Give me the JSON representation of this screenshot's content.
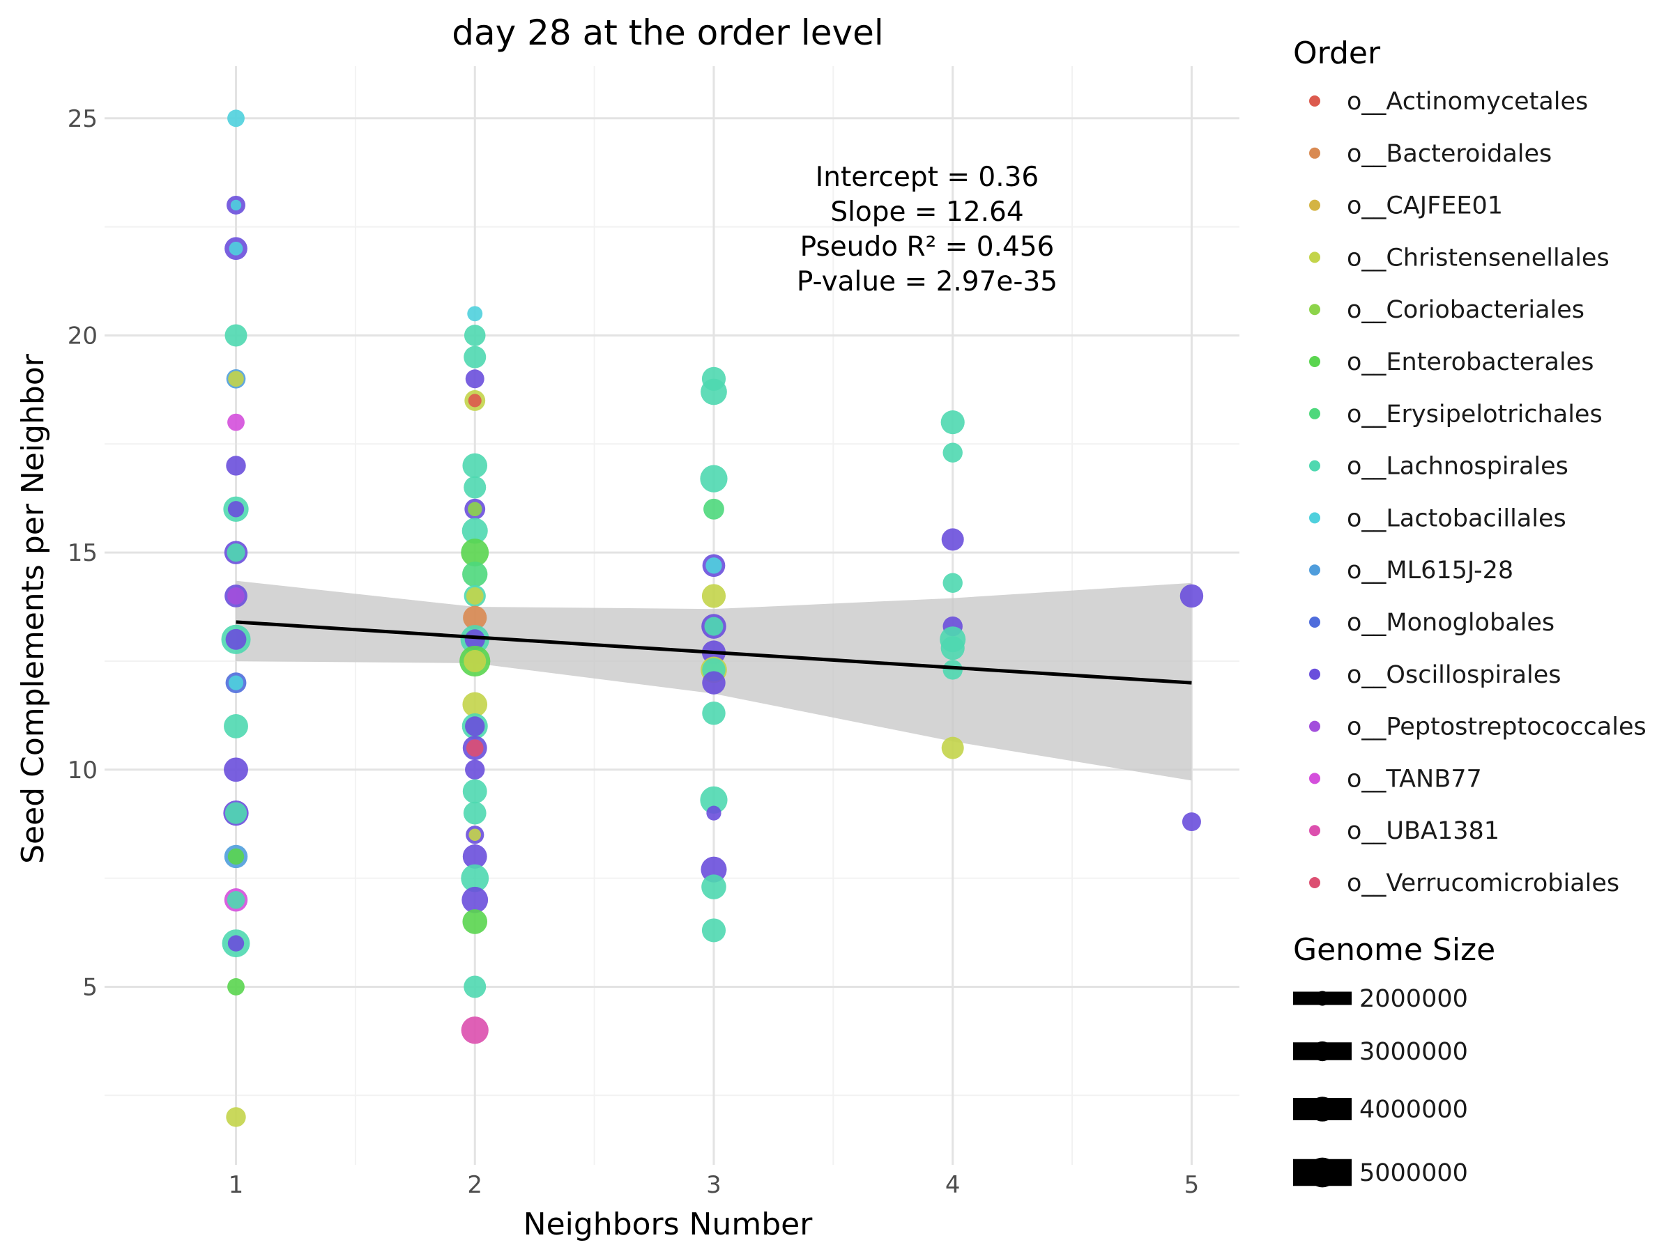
{
  "chart_data": {
    "type": "scatter",
    "title": "day 28 at the order level",
    "xlabel": "Neighbors Number",
    "ylabel": "Seed Complements per Neighbor",
    "xlim": [
      0.45,
      5.2
    ],
    "ylim": [
      0.9,
      26.2
    ],
    "xticks": [
      1,
      2,
      3,
      4,
      5
    ],
    "yticks": [
      5,
      10,
      15,
      20,
      25
    ],
    "grid": true,
    "annotations": [
      "Intercept = 0.36",
      "Slope = 12.64",
      "Pseudo R² = 0.456",
      "P-value = 2.97e-35"
    ],
    "trend_line": {
      "x": [
        1,
        5
      ],
      "y": [
        13.4,
        12.0
      ]
    },
    "confidence_band": {
      "x": [
        1,
        2,
        3,
        4,
        5
      ],
      "upper": [
        14.35,
        13.75,
        13.7,
        13.95,
        14.3
      ],
      "lower": [
        12.5,
        12.45,
        11.75,
        10.65,
        9.75
      ]
    },
    "color_legend": {
      "title": "Order",
      "items": [
        {
          "label": "o__Actinomycetales",
          "color": "#dc5a4e"
        },
        {
          "label": "o__Bacteroidales",
          "color": "#d98a52"
        },
        {
          "label": "o__CAJFEE01",
          "color": "#d4b443"
        },
        {
          "label": "o__Christensenellales",
          "color": "#c3d44a"
        },
        {
          "label": "o__Coriobacteriales",
          "color": "#8dd44a"
        },
        {
          "label": "o__Enterobacterales",
          "color": "#5ad54f"
        },
        {
          "label": "o__Erysipelotrichales",
          "color": "#4ed87c"
        },
        {
          "label": "o__Lachnospirales",
          "color": "#4fd8b0"
        },
        {
          "label": "o__Lactobacillales",
          "color": "#4fd0dd"
        },
        {
          "label": "o__ML615J-28",
          "color": "#4f9ddc"
        },
        {
          "label": "o__Monoglobales",
          "color": "#4f6ddc"
        },
        {
          "label": "o__Oscillospirales",
          "color": "#6a4fdc"
        },
        {
          "label": "o__Peptostreptococcales",
          "color": "#a24fdc"
        },
        {
          "label": "o__TANB77",
          "color": "#d44fdc"
        },
        {
          "label": "o__UBA1381",
          "color": "#dc4fae"
        },
        {
          "label": "o__Verrucomicrobiales",
          "color": "#dc4f72"
        }
      ]
    },
    "size_legend": {
      "title": "Genome Size",
      "items": [
        {
          "label": "2000000",
          "value": 2000000
        },
        {
          "label": "3000000",
          "value": 3000000
        },
        {
          "label": "4000000",
          "value": 4000000
        },
        {
          "label": "5000000",
          "value": 5000000
        }
      ]
    },
    "points": [
      {
        "x": 1,
        "y": 25,
        "order": "o__Lactobacillales",
        "size": 2500000
      },
      {
        "x": 1,
        "y": 23,
        "order": "o__Oscillospirales",
        "size": 2800000
      },
      {
        "x": 1,
        "y": 23,
        "order": "o__Lactobacillales",
        "size": 1200000
      },
      {
        "x": 1,
        "y": 22,
        "order": "o__Oscillospirales",
        "size": 3600000
      },
      {
        "x": 1,
        "y": 22,
        "order": "o__Lactobacillales",
        "size": 1800000
      },
      {
        "x": 1,
        "y": 20,
        "order": "o__Lachnospirales",
        "size": 3500000
      },
      {
        "x": 1,
        "y": 19,
        "order": "o__ML615J-28",
        "size": 2900000
      },
      {
        "x": 1,
        "y": 19,
        "order": "o__Christensenellales",
        "size": 2200000
      },
      {
        "x": 1,
        "y": 18,
        "order": "o__TANB77",
        "size": 2500000
      },
      {
        "x": 1,
        "y": 17,
        "order": "o__Oscillospirales",
        "size": 3000000
      },
      {
        "x": 1,
        "y": 16,
        "order": "o__Lachnospirales",
        "size": 4100000
      },
      {
        "x": 1,
        "y": 16,
        "order": "o__Oscillospirales",
        "size": 2300000
      },
      {
        "x": 1,
        "y": 15,
        "order": "o__Oscillospirales",
        "size": 3700000
      },
      {
        "x": 1,
        "y": 15,
        "order": "o__Lachnospirales",
        "size": 2700000
      },
      {
        "x": 1,
        "y": 14,
        "order": "o__Oscillospirales",
        "size": 3600000
      },
      {
        "x": 1,
        "y": 14,
        "order": "o__Peptostreptococcales",
        "size": 2500000
      },
      {
        "x": 1,
        "y": 13,
        "order": "o__Lachnospirales",
        "size": 4900000
      },
      {
        "x": 1,
        "y": 13,
        "order": "o__Oscillospirales",
        "size": 3200000
      },
      {
        "x": 1,
        "y": 12,
        "order": "o__Monoglobales",
        "size": 3200000
      },
      {
        "x": 1,
        "y": 12,
        "order": "o__Lactobacillales",
        "size": 2000000
      },
      {
        "x": 1,
        "y": 11,
        "order": "o__Lachnospirales",
        "size": 3900000
      },
      {
        "x": 1,
        "y": 10,
        "order": "o__Oscillospirales",
        "size": 3900000
      },
      {
        "x": 1,
        "y": 9,
        "order": "o__Oscillospirales",
        "size": 4100000
      },
      {
        "x": 1,
        "y": 9,
        "order": "o__Lachnospirales",
        "size": 3400000
      },
      {
        "x": 1,
        "y": 8,
        "order": "o__ML615J-28",
        "size": 3700000
      },
      {
        "x": 1,
        "y": 8,
        "order": "o__Enterobacterales",
        "size": 2300000
      },
      {
        "x": 1,
        "y": 7,
        "order": "o__TANB77",
        "size": 3700000
      },
      {
        "x": 1,
        "y": 7,
        "order": "o__Lachnospirales",
        "size": 2600000
      },
      {
        "x": 1,
        "y": 6,
        "order": "o__Lachnospirales",
        "size": 4600000
      },
      {
        "x": 1,
        "y": 6,
        "order": "o__Oscillospirales",
        "size": 2300000
      },
      {
        "x": 1,
        "y": 5,
        "order": "o__Enterobacterales",
        "size": 2500000
      },
      {
        "x": 1,
        "y": 2,
        "order": "o__Christensenellales",
        "size": 3000000
      },
      {
        "x": 2,
        "y": 20.5,
        "order": "o__Lactobacillales",
        "size": 2100000
      },
      {
        "x": 2,
        "y": 20,
        "order": "o__Lachnospirales",
        "size": 3300000
      },
      {
        "x": 2,
        "y": 19.5,
        "order": "o__Lachnospirales",
        "size": 3500000
      },
      {
        "x": 2,
        "y": 19,
        "order": "o__Oscillospirales",
        "size": 2800000
      },
      {
        "x": 2,
        "y": 18.5,
        "order": "o__Christensenellales",
        "size": 3200000
      },
      {
        "x": 2,
        "y": 18.5,
        "order": "o__Actinomycetales",
        "size": 1700000
      },
      {
        "x": 2,
        "y": 17,
        "order": "o__Lachnospirales",
        "size": 4000000
      },
      {
        "x": 2,
        "y": 16.5,
        "order": "o__Lachnospirales",
        "size": 3500000
      },
      {
        "x": 2,
        "y": 16,
        "order": "o__Oscillospirales",
        "size": 3200000
      },
      {
        "x": 2,
        "y": 16,
        "order": "o__Coriobacteriales",
        "size": 1900000
      },
      {
        "x": 2,
        "y": 15.5,
        "order": "o__Lachnospirales",
        "size": 4200000
      },
      {
        "x": 2,
        "y": 15,
        "order": "o__Enterobacterales",
        "size": 4600000
      },
      {
        "x": 2,
        "y": 14.5,
        "order": "o__Erysipelotrichales",
        "size": 4100000
      },
      {
        "x": 2,
        "y": 14,
        "order": "o__Lachnospirales",
        "size": 3400000
      },
      {
        "x": 2,
        "y": 14,
        "order": "o__Christensenellales",
        "size": 2500000
      },
      {
        "x": 2,
        "y": 13.5,
        "order": "o__Bacteroidales",
        "size": 3800000
      },
      {
        "x": 2,
        "y": 13,
        "order": "o__Lachnospirales",
        "size": 4800000
      },
      {
        "x": 2,
        "y": 13,
        "order": "o__Oscillospirales",
        "size": 3100000
      },
      {
        "x": 2,
        "y": 12.5,
        "order": "o__Enterobacterales",
        "size": 5200000
      },
      {
        "x": 2,
        "y": 12.5,
        "order": "o__Christensenellales",
        "size": 3500000
      },
      {
        "x": 2,
        "y": 11.5,
        "order": "o__Christensenellales",
        "size": 4000000
      },
      {
        "x": 2,
        "y": 11,
        "order": "o__Lachnospirales",
        "size": 4200000
      },
      {
        "x": 2,
        "y": 11,
        "order": "o__Oscillospirales",
        "size": 3000000
      },
      {
        "x": 2,
        "y": 10.5,
        "order": "o__Oscillospirales",
        "size": 3900000
      },
      {
        "x": 2,
        "y": 10.5,
        "order": "o__Verrucomicrobiales",
        "size": 2500000
      },
      {
        "x": 2,
        "y": 10,
        "order": "o__Oscillospirales",
        "size": 3000000
      },
      {
        "x": 2,
        "y": 9.5,
        "order": "o__Lachnospirales",
        "size": 3900000
      },
      {
        "x": 2,
        "y": 9,
        "order": "o__Lachnospirales",
        "size": 3600000
      },
      {
        "x": 2,
        "y": 8.5,
        "order": "o__Oscillospirales",
        "size": 2700000
      },
      {
        "x": 2,
        "y": 8.5,
        "order": "o__Christensenellales",
        "size": 1500000
      },
      {
        "x": 2,
        "y": 8,
        "order": "o__Oscillospirales",
        "size": 3900000
      },
      {
        "x": 2,
        "y": 7.5,
        "order": "o__Lachnospirales",
        "size": 4600000
      },
      {
        "x": 2,
        "y": 7,
        "order": "o__Oscillospirales",
        "size": 4300000
      },
      {
        "x": 2,
        "y": 6.5,
        "order": "o__Enterobacterales",
        "size": 4000000
      },
      {
        "x": 2,
        "y": 5,
        "order": "o__Lachnospirales",
        "size": 3500000
      },
      {
        "x": 2,
        "y": 4,
        "order": "o__UBA1381",
        "size": 4500000
      },
      {
        "x": 3,
        "y": 19,
        "order": "o__Lachnospirales",
        "size": 3800000
      },
      {
        "x": 3,
        "y": 18.7,
        "order": "o__Lachnospirales",
        "size": 4300000
      },
      {
        "x": 3,
        "y": 16.7,
        "order": "o__Lachnospirales",
        "size": 4500000
      },
      {
        "x": 3,
        "y": 16,
        "order": "o__Erysipelotrichales",
        "size": 3200000
      },
      {
        "x": 3,
        "y": 14.7,
        "order": "o__Oscillospirales",
        "size": 3600000
      },
      {
        "x": 3,
        "y": 14.7,
        "order": "o__Lactobacillales",
        "size": 2300000
      },
      {
        "x": 3,
        "y": 14,
        "order": "o__Christensenellales",
        "size": 3800000
      },
      {
        "x": 3,
        "y": 13.3,
        "order": "o__Oscillospirales",
        "size": 4000000
      },
      {
        "x": 3,
        "y": 13.3,
        "order": "o__Lachnospirales",
        "size": 2800000
      },
      {
        "x": 3,
        "y": 12.7,
        "order": "o__Oscillospirales",
        "size": 3800000
      },
      {
        "x": 3,
        "y": 12.3,
        "order": "o__Christensenellales",
        "size": 4300000
      },
      {
        "x": 3,
        "y": 12.3,
        "order": "o__Lachnospirales",
        "size": 3700000
      },
      {
        "x": 3,
        "y": 12,
        "order": "o__Oscillospirales",
        "size": 3700000
      },
      {
        "x": 3,
        "y": 11.3,
        "order": "o__Lachnospirales",
        "size": 3700000
      },
      {
        "x": 3,
        "y": 9.3,
        "order": "o__Lachnospirales",
        "size": 4500000
      },
      {
        "x": 3,
        "y": 9,
        "order": "o__Oscillospirales",
        "size": 2000000
      },
      {
        "x": 3,
        "y": 7.7,
        "order": "o__Oscillospirales",
        "size": 4200000
      },
      {
        "x": 3,
        "y": 7.3,
        "order": "o__Lachnospirales",
        "size": 4000000
      },
      {
        "x": 3,
        "y": 6.3,
        "order": "o__Lachnospirales",
        "size": 3800000
      },
      {
        "x": 4,
        "y": 18,
        "order": "o__Lachnospirales",
        "size": 3800000
      },
      {
        "x": 4,
        "y": 17.3,
        "order": "o__Lachnospirales",
        "size": 3000000
      },
      {
        "x": 4,
        "y": 15.3,
        "order": "o__Oscillospirales",
        "size": 3500000
      },
      {
        "x": 4,
        "y": 14.3,
        "order": "o__Lachnospirales",
        "size": 3000000
      },
      {
        "x": 4,
        "y": 13.3,
        "order": "o__Oscillospirales",
        "size": 3000000
      },
      {
        "x": 4,
        "y": 13,
        "order": "o__Lachnospirales",
        "size": 4200000
      },
      {
        "x": 4,
        "y": 12.8,
        "order": "o__Lachnospirales",
        "size": 3800000
      },
      {
        "x": 4,
        "y": 12.3,
        "order": "o__Lachnospirales",
        "size": 3000000
      },
      {
        "x": 4,
        "y": 10.5,
        "order": "o__Christensenellales",
        "size": 3500000
      },
      {
        "x": 5,
        "y": 14,
        "order": "o__Oscillospirales",
        "size": 3700000
      },
      {
        "x": 5,
        "y": 8.8,
        "order": "o__Oscillospirales",
        "size": 2800000
      }
    ]
  }
}
